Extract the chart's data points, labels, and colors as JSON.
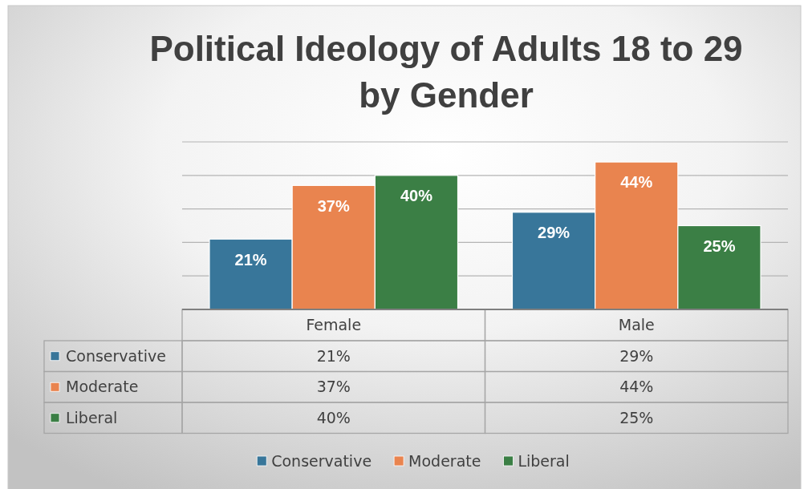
{
  "chart_data": {
    "type": "bar",
    "title": "Political Ideology of Adults 18 to 29 by Gender",
    "categories": [
      "Female",
      "Male"
    ],
    "series": [
      {
        "name": "Conservative",
        "color": "#38769a",
        "values": [
          21,
          29
        ],
        "value_labels": [
          "21%",
          "29%"
        ]
      },
      {
        "name": "Moderate",
        "color": "#e9844f",
        "values": [
          37,
          44
        ],
        "value_labels": [
          "37%",
          "44%"
        ]
      },
      {
        "name": "Liberal",
        "color": "#3b7f45",
        "values": [
          40,
          25
        ],
        "value_labels": [
          "40%",
          "25%"
        ]
      }
    ],
    "ylim": [
      0,
      50
    ],
    "yticks": [
      {
        "value": 0,
        "label": null
      },
      {
        "value": 10,
        "label": null
      },
      {
        "value": 20,
        "label": null
      },
      {
        "value": 30,
        "label": null
      },
      {
        "value": 40,
        "label": null
      },
      {
        "value": 50,
        "label": null
      }
    ],
    "grid": "y",
    "legend": "bottom",
    "tick_labels": "x"
  }
}
